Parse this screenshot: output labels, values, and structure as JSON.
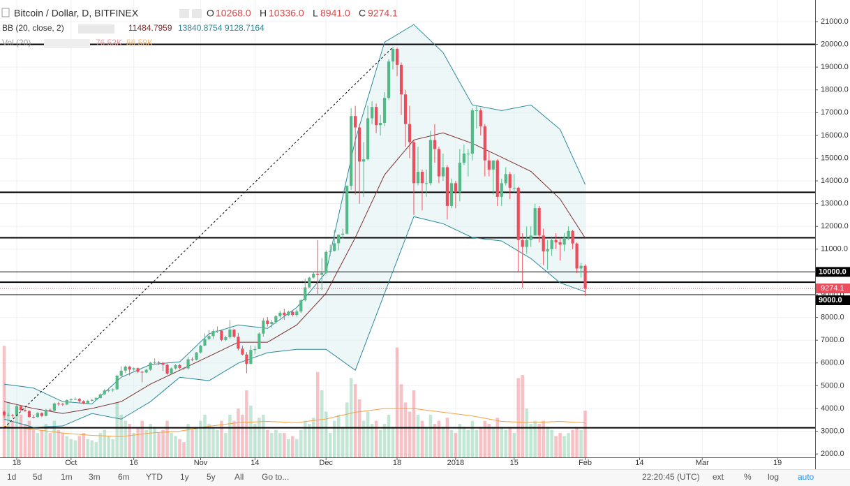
{
  "header": {
    "symbol": "Bitcoin / Dollar, D, BITFINEX",
    "ohlc_letters": [
      "O",
      "H",
      "L",
      "C"
    ],
    "ohlc_values": [
      "10268.0",
      "10336.0",
      "8941.0",
      "9274.1"
    ],
    "bb_title": "BB (20, close, 2)",
    "vol_title": "Vol (20)",
    "vol_values": [
      "76.53K",
      "56.58K"
    ]
  },
  "toolbar": {
    "ranges": [
      "1d",
      "5d",
      "1m",
      "3m",
      "6m",
      "YTD",
      "1y",
      "5y",
      "All"
    ],
    "goto": "Go to...",
    "time": "22:20:45 (UTC)",
    "options": [
      "ext",
      "%",
      "log",
      "auto"
    ]
  },
  "chart_data": {
    "type": "candlestick",
    "up_color": "#53b987",
    "down_color": "#eb4d5c",
    "grid": true,
    "xlim": [
      "09-14",
      "03-28"
    ],
    "xticks": [
      {
        "value": "09-18",
        "label": "18"
      },
      {
        "value": "10-01",
        "label": "Oct"
      },
      {
        "value": "10-16",
        "label": "16"
      },
      {
        "value": "11-01",
        "label": "Nov"
      },
      {
        "value": "11-14",
        "label": "14"
      },
      {
        "value": "12-01",
        "label": "Dec"
      },
      {
        "value": "12-18",
        "label": "18"
      },
      {
        "value": "01-01",
        "label": "2018"
      },
      {
        "value": "01-15",
        "label": "15"
      },
      {
        "value": "02-01",
        "label": "Feb"
      },
      {
        "value": "02-14",
        "label": "14"
      },
      {
        "value": "03-01",
        "label": "Mar"
      },
      {
        "value": "03-19",
        "label": "19"
      }
    ],
    "ylim": [
      1850,
      21950
    ],
    "yticks": [
      {
        "value": 2000,
        "label": "2000.0"
      },
      {
        "value": 3000,
        "label": "3000.0"
      },
      {
        "value": 4000,
        "label": "4000.0"
      },
      {
        "value": 5000,
        "label": "5000.0"
      },
      {
        "value": 6000,
        "label": "6000.0"
      },
      {
        "value": 7000,
        "label": "7000.0"
      },
      {
        "value": 8000,
        "label": "8000.0"
      },
      {
        "value": 9000,
        "label": "9000.0"
      },
      {
        "value": 10000,
        "label": "10000.0"
      },
      {
        "value": 11000,
        "label": "11000.0"
      },
      {
        "value": 12000,
        "label": "12000.0"
      },
      {
        "value": 13000,
        "label": "13000.0"
      },
      {
        "value": 14000,
        "label": "14000.0"
      },
      {
        "value": 15000,
        "label": "15000.0"
      },
      {
        "value": 16000,
        "label": "16000.0"
      },
      {
        "value": 17000,
        "label": "17000.0"
      },
      {
        "value": 18000,
        "label": "18000.0"
      },
      {
        "value": 19000,
        "label": "19000.0"
      },
      {
        "value": 20000,
        "label": "20000.0"
      },
      {
        "value": 21000,
        "label": "21000.0"
      }
    ],
    "x": [
      "09-15",
      "09-16",
      "09-17",
      "09-18",
      "09-19",
      "09-20",
      "09-21",
      "09-22",
      "09-23",
      "09-24",
      "09-25",
      "09-26",
      "09-27",
      "09-28",
      "09-29",
      "09-30",
      "10-01",
      "10-02",
      "10-03",
      "10-04",
      "10-05",
      "10-06",
      "10-07",
      "10-08",
      "10-09",
      "10-10",
      "10-11",
      "10-12",
      "10-13",
      "10-14",
      "10-15",
      "10-16",
      "10-17",
      "10-18",
      "10-19",
      "10-20",
      "10-21",
      "10-22",
      "10-23",
      "10-24",
      "10-25",
      "10-26",
      "10-27",
      "10-28",
      "10-29",
      "10-30",
      "10-31",
      "11-01",
      "11-02",
      "11-03",
      "11-04",
      "11-05",
      "11-06",
      "11-07",
      "11-08",
      "11-09",
      "11-10",
      "11-11",
      "11-12",
      "11-13",
      "11-14",
      "11-15",
      "11-16",
      "11-17",
      "11-18",
      "11-19",
      "11-20",
      "11-21",
      "11-22",
      "11-23",
      "11-24",
      "11-25",
      "11-26",
      "11-27",
      "11-28",
      "11-29",
      "11-30",
      "12-01",
      "12-02",
      "12-03",
      "12-04",
      "12-05",
      "12-06",
      "12-07",
      "12-08",
      "12-09",
      "12-10",
      "12-11",
      "12-12",
      "12-13",
      "12-14",
      "12-15",
      "12-16",
      "12-17",
      "12-18",
      "12-19",
      "12-20",
      "12-21",
      "12-22",
      "12-23",
      "12-24",
      "12-25",
      "12-26",
      "12-27",
      "12-28",
      "12-29",
      "12-30",
      "12-31",
      "01-01",
      "01-02",
      "01-03",
      "01-04",
      "01-05",
      "01-06",
      "01-07",
      "01-08",
      "01-09",
      "01-10",
      "01-11",
      "01-12",
      "01-13",
      "01-14",
      "01-15",
      "01-16",
      "01-17",
      "01-18",
      "01-19",
      "01-20",
      "01-21",
      "01-22",
      "01-23",
      "01-24",
      "01-25",
      "01-26",
      "01-27",
      "01-28",
      "01-29",
      "01-30",
      "01-31",
      "02-01"
    ],
    "candles": [
      [
        3860,
        3920,
        3600,
        3700
      ],
      [
        3700,
        3800,
        3640,
        3710
      ],
      [
        3710,
        3760,
        3590,
        3690
      ],
      [
        3690,
        4150,
        3680,
        4090
      ],
      [
        4090,
        4130,
        3880,
        3930
      ],
      [
        3930,
        4020,
        3850,
        3890
      ],
      [
        3890,
        3920,
        3580,
        3630
      ],
      [
        3630,
        3720,
        3560,
        3620
      ],
      [
        3620,
        3850,
        3600,
        3800
      ],
      [
        3800,
        3830,
        3620,
        3670
      ],
      [
        3670,
        3980,
        3650,
        3940
      ],
      [
        3940,
        3990,
        3850,
        3900
      ],
      [
        3900,
        4260,
        3880,
        4220
      ],
      [
        4220,
        4290,
        4120,
        4200
      ],
      [
        4200,
        4240,
        4110,
        4170
      ],
      [
        4170,
        4400,
        4150,
        4370
      ],
      [
        4370,
        4440,
        4300,
        4410
      ],
      [
        4410,
        4480,
        4360,
        4420
      ],
      [
        4420,
        4460,
        4250,
        4320
      ],
      [
        4320,
        4360,
        4180,
        4230
      ],
      [
        4230,
        4380,
        4200,
        4340
      ],
      [
        4340,
        4420,
        4300,
        4380
      ],
      [
        4380,
        4500,
        4350,
        4460
      ],
      [
        4460,
        4660,
        4440,
        4620
      ],
      [
        4620,
        4850,
        4600,
        4790
      ],
      [
        4790,
        4900,
        4720,
        4800
      ],
      [
        4800,
        4880,
        4730,
        4840
      ],
      [
        4840,
        5480,
        4820,
        5440
      ],
      [
        5440,
        5850,
        5400,
        5660
      ],
      [
        5660,
        5880,
        5550,
        5840
      ],
      [
        5840,
        5860,
        5450,
        5710
      ],
      [
        5710,
        5800,
        5650,
        5770
      ],
      [
        5770,
        5800,
        5560,
        5610
      ],
      [
        5610,
        5650,
        5150,
        5580
      ],
      [
        5580,
        5750,
        5550,
        5700
      ],
      [
        5700,
        6050,
        5650,
        6010
      ],
      [
        6010,
        6200,
        5950,
        6030
      ],
      [
        6030,
        6080,
        5900,
        6000
      ],
      [
        6000,
        6050,
        5650,
        5920
      ],
      [
        5920,
        5960,
        5480,
        5530
      ],
      [
        5530,
        5800,
        5500,
        5760
      ],
      [
        5760,
        5950,
        5720,
        5900
      ],
      [
        5900,
        5960,
        5730,
        5780
      ],
      [
        5780,
        5810,
        5700,
        5760
      ],
      [
        5760,
        6260,
        5700,
        6160
      ],
      [
        6160,
        6250,
        6080,
        6140
      ],
      [
        6140,
        6480,
        6110,
        6460
      ],
      [
        6460,
        6790,
        6420,
        6760
      ],
      [
        6760,
        7300,
        6740,
        7050
      ],
      [
        7050,
        7450,
        7000,
        7180
      ],
      [
        7180,
        7480,
        7050,
        7400
      ],
      [
        7400,
        7600,
        7310,
        7420
      ],
      [
        7420,
        7450,
        6960,
        7010
      ],
      [
        7010,
        7200,
        6960,
        7130
      ],
      [
        7130,
        7880,
        7070,
        7470
      ],
      [
        7470,
        7480,
        7100,
        7150
      ],
      [
        7150,
        7320,
        6550,
        6630
      ],
      [
        6630,
        6760,
        6330,
        6370
      ],
      [
        6370,
        6480,
        5550,
        5960
      ],
      [
        5960,
        6770,
        5940,
        6570
      ],
      [
        6570,
        6740,
        6400,
        6610
      ],
      [
        6610,
        7350,
        6600,
        7290
      ],
      [
        7290,
        7980,
        7150,
        7860
      ],
      [
        7860,
        8020,
        7600,
        7710
      ],
      [
        7710,
        7890,
        7550,
        7800
      ],
      [
        7800,
        8110,
        7720,
        8050
      ],
      [
        8050,
        8300,
        7990,
        8210
      ],
      [
        8210,
        8380,
        7900,
        8100
      ],
      [
        8100,
        8300,
        8060,
        8250
      ],
      [
        8250,
        8300,
        8040,
        8110
      ],
      [
        8110,
        8350,
        8030,
        8260
      ],
      [
        8260,
        8800,
        8200,
        8760
      ],
      [
        8760,
        9700,
        8700,
        9320
      ],
      [
        9320,
        9780,
        9300,
        9750
      ],
      [
        9750,
        10000,
        9700,
        9920
      ],
      [
        9920,
        11400,
        9000,
        9870
      ],
      [
        9870,
        10600,
        9200,
        9960
      ],
      [
        9960,
        10950,
        9900,
        10880
      ],
      [
        10880,
        11200,
        10700,
        10920
      ],
      [
        10920,
        11850,
        10900,
        11260
      ],
      [
        11260,
        11650,
        10950,
        11640
      ],
      [
        11640,
        11900,
        11470,
        11680
      ],
      [
        11680,
        13800,
        11650,
        13780
      ],
      [
        13780,
        17200,
        13600,
        16850
      ],
      [
        16850,
        17300,
        13400,
        16350
      ],
      [
        16350,
        16500,
        13000,
        14850
      ],
      [
        14850,
        15700,
        13300,
        14950
      ],
      [
        14950,
        17300,
        14900,
        16750
      ],
      [
        16750,
        17500,
        16500,
        17250
      ],
      [
        17250,
        17400,
        16100,
        16450
      ],
      [
        16450,
        16900,
        16000,
        16550
      ],
      [
        16550,
        17900,
        16400,
        17650
      ],
      [
        17650,
        19350,
        17550,
        19250
      ],
      [
        19250,
        19890,
        18900,
        19800
      ],
      [
        19800,
        19850,
        18600,
        19100
      ],
      [
        19100,
        19200,
        16900,
        17800
      ],
      [
        17800,
        18000,
        15500,
        16500
      ],
      [
        16500,
        17300,
        15000,
        15700
      ],
      [
        15700,
        15800,
        12500,
        13900
      ],
      [
        13900,
        15500,
        13800,
        14400
      ],
      [
        14400,
        14500,
        12700,
        13900
      ],
      [
        13900,
        14500,
        13300,
        13900
      ],
      [
        13900,
        16200,
        13800,
        15800
      ],
      [
        15800,
        16500,
        14800,
        15400
      ],
      [
        15400,
        15500,
        13900,
        14200
      ],
      [
        14200,
        15200,
        14000,
        14600
      ],
      [
        14600,
        14700,
        12300,
        12900
      ],
      [
        12900,
        14100,
        12800,
        13900
      ],
      [
        13900,
        14000,
        12800,
        13500
      ],
      [
        13500,
        15400,
        13100,
        14800
      ],
      [
        14800,
        15600,
        14700,
        15200
      ],
      [
        15200,
        15400,
        14200,
        15200
      ],
      [
        15200,
        17200,
        14900,
        17100
      ],
      [
        17100,
        17300,
        16300,
        17100
      ],
      [
        17100,
        17200,
        16000,
        16400
      ],
      [
        16400,
        16500,
        14200,
        14900
      ],
      [
        14900,
        15300,
        14200,
        14500
      ],
      [
        14500,
        14900,
        13400,
        14900
      ],
      [
        14900,
        14950,
        12900,
        13300
      ],
      [
        13300,
        14100,
        12900,
        13900
      ],
      [
        13900,
        14600,
        13800,
        14300
      ],
      [
        14300,
        14400,
        13200,
        13700
      ],
      [
        13700,
        14300,
        13500,
        13700
      ],
      [
        13700,
        13750,
        10000,
        11400
      ],
      [
        11400,
        11700,
        9300,
        11100
      ],
      [
        11100,
        12000,
        10800,
        11400
      ],
      [
        11400,
        12000,
        11100,
        11600
      ],
      [
        11600,
        13000,
        11600,
        12800
      ],
      [
        12800,
        12900,
        11300,
        11600
      ],
      [
        11600,
        11900,
        10300,
        10900
      ],
      [
        10900,
        11400,
        10100,
        11000
      ],
      [
        11000,
        11500,
        10700,
        11400
      ],
      [
        11400,
        11700,
        11000,
        11300
      ],
      [
        11300,
        11500,
        10500,
        11200
      ],
      [
        11200,
        11700,
        10900,
        11500
      ],
      [
        11500,
        12000,
        11400,
        11800
      ],
      [
        11800,
        11850,
        11000,
        11250
      ],
      [
        11250,
        11300,
        9950,
        10150
      ],
      [
        10150,
        10400,
        9750,
        10268
      ],
      [
        10268,
        10336,
        8941,
        9274.1
      ]
    ],
    "vol_ylim": [
      0,
      750
    ],
    "volume": [
      183,
      90,
      60,
      85,
      70,
      55,
      60,
      45,
      40,
      45,
      55,
      40,
      60,
      45,
      40,
      35,
      30,
      28,
      35,
      40,
      30,
      28,
      25,
      40,
      45,
      35,
      30,
      90,
      70,
      60,
      55,
      40,
      50,
      60,
      45,
      55,
      50,
      40,
      45,
      60,
      40,
      35,
      30,
      25,
      55,
      45,
      50,
      60,
      70,
      55,
      50,
      45,
      60,
      40,
      70,
      60,
      80,
      70,
      110,
      85,
      55,
      65,
      70,
      45,
      40,
      45,
      40,
      40,
      30,
      35,
      30,
      45,
      60,
      55,
      65,
      140,
      110,
      75,
      40,
      60,
      70,
      50,
      90,
      130,
      120,
      95,
      60,
      75,
      55,
      60,
      45,
      55,
      70,
      50,
      180,
      120,
      90,
      75,
      110,
      70,
      60,
      50,
      70,
      55,
      60,
      50,
      65,
      45,
      40,
      55,
      50,
      45,
      60,
      45,
      50,
      60,
      55,
      50,
      65,
      50,
      45,
      50,
      40,
      130,
      135,
      80,
      55,
      60,
      55,
      60,
      50,
      45,
      35,
      40,
      35,
      40,
      45,
      50,
      45,
      76.53
    ],
    "volume_ma": {
      "color": "#f5a142",
      "x": [
        "09-15",
        "09-22",
        "09-29",
        "10-06",
        "10-13",
        "10-20",
        "10-27",
        "11-03",
        "11-10",
        "11-17",
        "11-24",
        "12-01",
        "12-08",
        "12-15",
        "12-22",
        "12-29",
        "01-05",
        "01-12",
        "01-19",
        "01-26",
        "02-01"
      ],
      "values": [
        51,
        46,
        40,
        36,
        34,
        40,
        43,
        51,
        57,
        59,
        57,
        63,
        74,
        80,
        80,
        74,
        68,
        59,
        57,
        59,
        56.58
      ]
    },
    "bollinger": {
      "band_color": "#2a8a9a",
      "middle_color": "#7b2d2d",
      "fill": "#cfe8ea",
      "x": [
        "09-15",
        "09-22",
        "09-29",
        "10-06",
        "10-13",
        "10-20",
        "10-27",
        "11-03",
        "11-10",
        "11-17",
        "11-24",
        "12-01",
        "12-08",
        "12-15",
        "12-22",
        "12-29",
        "01-05",
        "01-12",
        "01-19",
        "01-26",
        "02-01"
      ],
      "middle": [
        4300,
        4000,
        3780,
        4000,
        4300,
        5070,
        5680,
        6290,
        6910,
        6910,
        7670,
        9060,
        11510,
        14270,
        15800,
        16110,
        15650,
        15040,
        14420,
        13200,
        11484.7959
      ],
      "upper": [
        5070,
        4900,
        4300,
        4200,
        5370,
        5930,
        6050,
        7280,
        7670,
        7520,
        8440,
        9980,
        15800,
        20100,
        20870,
        19640,
        17340,
        17090,
        17340,
        16260,
        13840.8754
      ],
      "lower": [
        3530,
        3170,
        3230,
        3780,
        3530,
        4300,
        5370,
        5220,
        5990,
        6450,
        6600,
        6600,
        5680,
        9060,
        12430,
        12120,
        11510,
        11360,
        10590,
        9520,
        9128.7164
      ]
    },
    "hlines": [
      {
        "value": 20000,
        "width": 2
      },
      {
        "value": 13500,
        "width": 2
      },
      {
        "value": 11500,
        "width": 2
      },
      {
        "value": 10000,
        "width": 1,
        "label": "10000.0"
      },
      {
        "value": 9550,
        "width": 2
      },
      {
        "value": 9000,
        "width": 1,
        "label": "9000.0"
      },
      {
        "value": 3150,
        "width": 2
      }
    ],
    "trendline": {
      "x": [
        "09-15",
        "12-17"
      ],
      "y": [
        3150,
        19880
      ]
    }
  }
}
